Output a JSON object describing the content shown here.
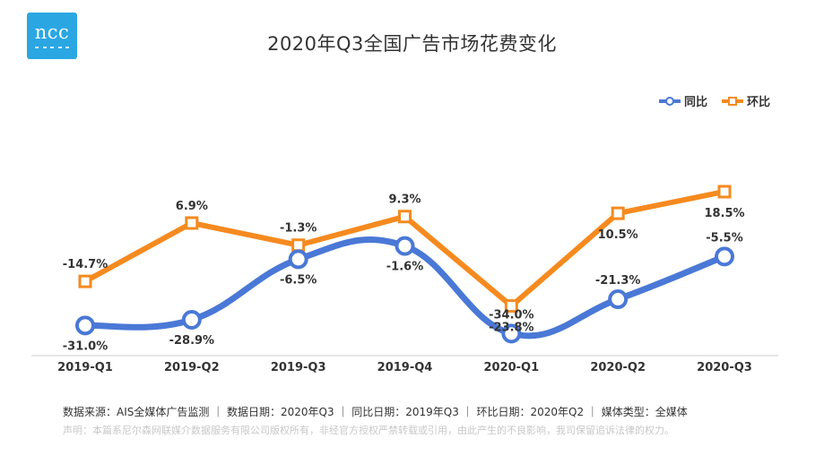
{
  "logo": {
    "text": "ncc"
  },
  "title": "2020年Q3全国广告市场花费变化",
  "legend": [
    {
      "name": "同比",
      "color": "#4a78d6"
    },
    {
      "name": "环比",
      "color": "#f58a1f"
    }
  ],
  "chart_data": {
    "type": "line",
    "title": "2020年Q3全国广告市场花费变化",
    "categories": [
      "2019-Q1",
      "2019-Q2",
      "2019-Q3",
      "2019-Q4",
      "2020-Q1",
      "2020-Q2",
      "2020-Q3"
    ],
    "series": [
      {
        "name": "同比",
        "color": "#4a78d6",
        "marker": "circle",
        "values": [
          -31.0,
          -28.9,
          -6.5,
          -1.6,
          -34.0,
          -21.3,
          -5.5
        ],
        "labels": [
          "-31.0%",
          "-28.9%",
          "-6.5%",
          "-1.6%",
          "-34.0%",
          "-21.3%",
          "-5.5%"
        ]
      },
      {
        "name": "环比",
        "color": "#f58a1f",
        "marker": "square",
        "values": [
          -14.7,
          6.9,
          -1.3,
          9.3,
          -23.8,
          10.5,
          18.5
        ],
        "labels": [
          "-14.7%",
          "6.9%",
          "-1.3%",
          "9.3%",
          "-23.8%",
          "10.5%",
          "18.5%"
        ]
      }
    ],
    "legend_position": "top-right",
    "grid": false,
    "y_axis_visible": false
  },
  "footer": {
    "source": "数据来源：AIS全媒体广告监测 ｜ 数据日期：2020年Q3 ｜ 同比日期：2019年Q3 ｜ 环比日期：2020年Q2 ｜ 媒体类型：全媒体",
    "disclaimer": "声明：本篇系尼尔森网联媒介数据服务有限公司版权所有，非经官方授权严禁转载或引用，由此产生的不良影响，我司保留追诉法律的权力。"
  }
}
